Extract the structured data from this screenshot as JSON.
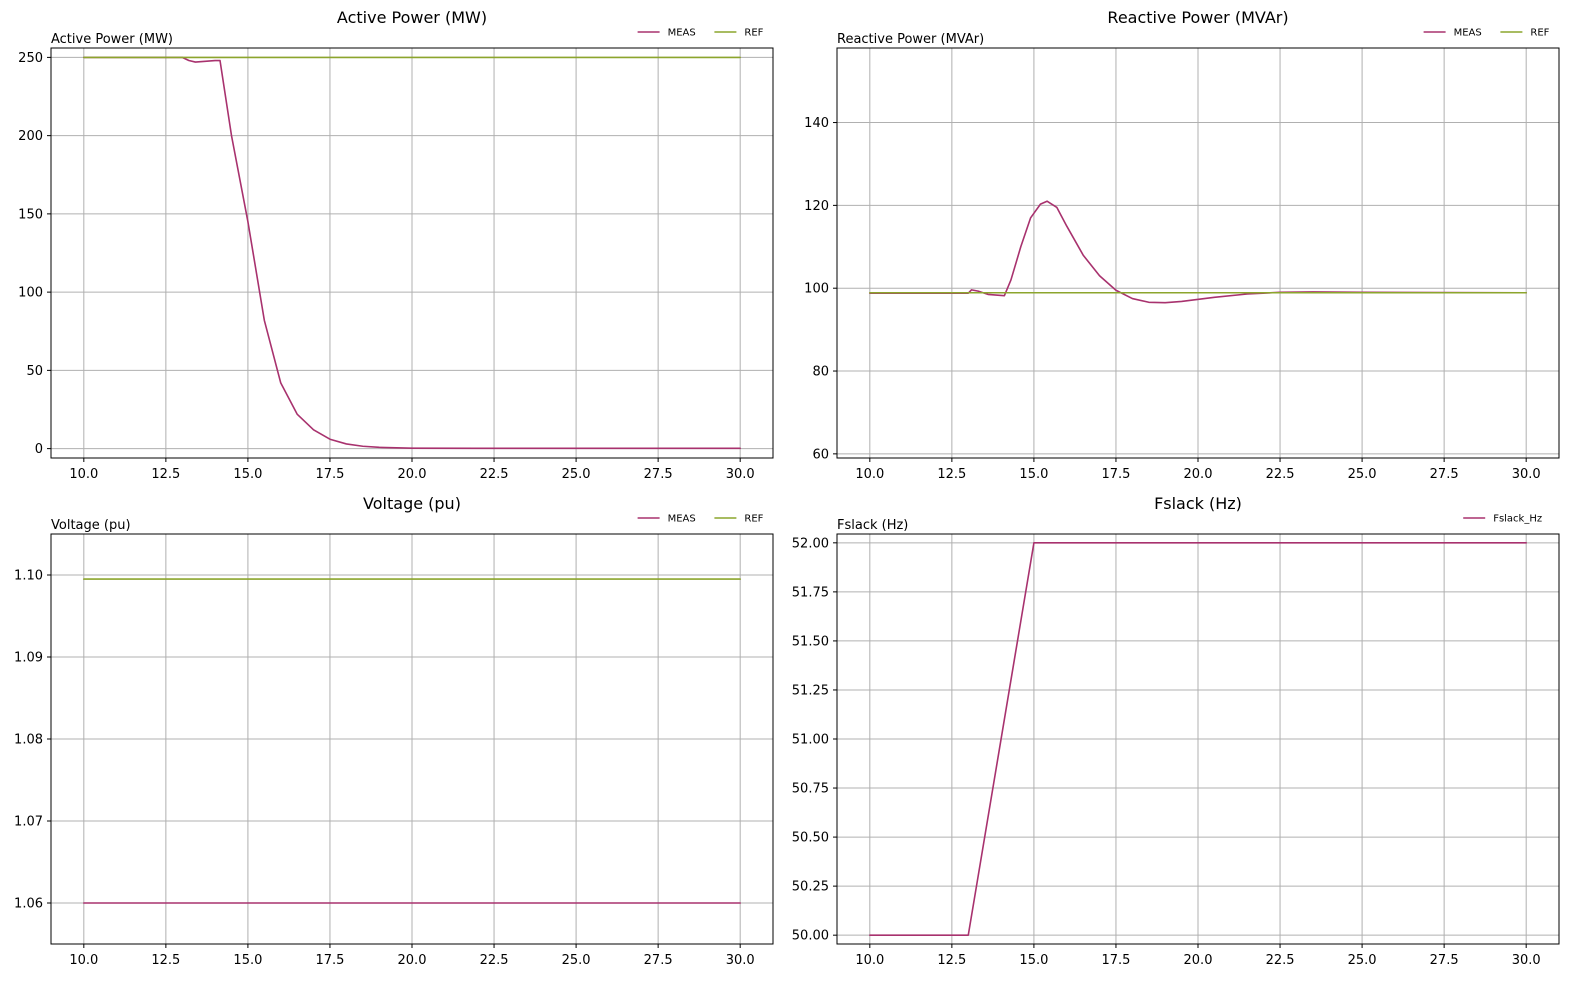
{
  "colors": {
    "meas": "#a8326e",
    "ref": "#8ca52d",
    "grid": "#b0b0b0"
  },
  "chart_data": [
    {
      "type": "line",
      "title": "Active Power (MW)",
      "ylabel": "Active Power (MW)",
      "xlim": [
        9.0,
        31.0
      ],
      "ylim": [
        -6,
        256
      ],
      "xticks": [
        10.0,
        12.5,
        15.0,
        17.5,
        20.0,
        22.5,
        25.0,
        27.5,
        30.0
      ],
      "xtick_labels": [
        "10.0",
        "12.5",
        "15.0",
        "17.5",
        "20.0",
        "22.5",
        "25.0",
        "27.5",
        "30.0"
      ],
      "yticks": [
        0,
        50,
        100,
        150,
        200,
        250
      ],
      "ytick_labels": [
        "0",
        "50",
        "100",
        "150",
        "200",
        "250"
      ],
      "grid": true,
      "legend": "top-right",
      "series": [
        {
          "name": "MEAS",
          "color": "#a8326e",
          "x": [
            10,
            13.0,
            13.2,
            13.4,
            13.7,
            14.0,
            14.15,
            14.5,
            15.0,
            15.5,
            16.0,
            16.5,
            17.0,
            17.5,
            18.0,
            18.5,
            19.0,
            20.0,
            22.0,
            25.0,
            30.0
          ],
          "y": [
            250,
            250,
            248,
            247,
            247.5,
            248,
            248,
            200,
            145,
            82,
            42,
            22,
            12,
            6,
            3,
            1.5,
            0.8,
            0.3,
            0.2,
            0.2,
            0.2
          ]
        },
        {
          "name": "REF",
          "color": "#8ca52d",
          "x": [
            10,
            30
          ],
          "y": [
            250,
            250
          ]
        }
      ]
    },
    {
      "type": "line",
      "title": "Reactive Power (MVAr)",
      "ylabel": "Reactive Power (MVAr)",
      "xlim": [
        9.0,
        31.0
      ],
      "ylim": [
        59,
        158
      ],
      "xticks": [
        10.0,
        12.5,
        15.0,
        17.5,
        20.0,
        22.5,
        25.0,
        27.5,
        30.0
      ],
      "xtick_labels": [
        "10.0",
        "12.5",
        "15.0",
        "17.5",
        "20.0",
        "22.5",
        "25.0",
        "27.5",
        "30.0"
      ],
      "yticks": [
        60,
        80,
        100,
        120,
        140
      ],
      "ytick_labels": [
        "60",
        "80",
        "100",
        "120",
        "140"
      ],
      "grid": true,
      "legend": "top-right",
      "series": [
        {
          "name": "MEAS",
          "color": "#a8326e",
          "x": [
            10,
            13.0,
            13.1,
            13.3,
            13.6,
            14.1,
            14.3,
            14.6,
            14.9,
            15.2,
            15.4,
            15.7,
            16.0,
            16.5,
            17.0,
            17.5,
            18.0,
            18.5,
            19.0,
            19.5,
            20.5,
            21.5,
            22.5,
            23.5,
            25.0,
            30.0
          ],
          "y": [
            98.8,
            98.8,
            99.6,
            99.3,
            98.5,
            98.2,
            102,
            110,
            117,
            120.3,
            121,
            119.5,
            115,
            108,
            103,
            99.5,
            97.5,
            96.6,
            96.5,
            96.8,
            97.8,
            98.6,
            99.0,
            99.1,
            99.0,
            98.9
          ]
        },
        {
          "name": "REF",
          "color": "#8ca52d",
          "x": [
            10,
            30
          ],
          "y": [
            98.9,
            98.9
          ]
        }
      ]
    },
    {
      "type": "line",
      "title": "Voltage (pu)",
      "ylabel": "Voltage (pu)",
      "xlim": [
        9.0,
        31.0
      ],
      "ylim": [
        1.055,
        1.105
      ],
      "xticks": [
        10.0,
        12.5,
        15.0,
        17.5,
        20.0,
        22.5,
        25.0,
        27.5,
        30.0
      ],
      "xtick_labels": [
        "10.0",
        "12.5",
        "15.0",
        "17.5",
        "20.0",
        "22.5",
        "25.0",
        "27.5",
        "30.0"
      ],
      "yticks": [
        1.06,
        1.07,
        1.08,
        1.09,
        1.1
      ],
      "ytick_labels": [
        "1.06",
        "1.07",
        "1.08",
        "1.09",
        "1.10"
      ],
      "grid": true,
      "legend": "top-right",
      "series": [
        {
          "name": "MEAS",
          "color": "#a8326e",
          "x": [
            10,
            30
          ],
          "y": [
            1.06,
            1.06
          ]
        },
        {
          "name": "REF",
          "color": "#8ca52d",
          "x": [
            10,
            30
          ],
          "y": [
            1.0995,
            1.0995
          ]
        }
      ]
    },
    {
      "type": "line",
      "title": "Fslack (Hz)",
      "ylabel": "Fslack (Hz)",
      "xlim": [
        9.0,
        31.0
      ],
      "ylim": [
        49.955,
        52.045
      ],
      "xticks": [
        10.0,
        12.5,
        15.0,
        17.5,
        20.0,
        22.5,
        25.0,
        27.5,
        30.0
      ],
      "xtick_labels": [
        "10.0",
        "12.5",
        "15.0",
        "17.5",
        "20.0",
        "22.5",
        "25.0",
        "27.5",
        "30.0"
      ],
      "yticks": [
        50.0,
        50.25,
        50.5,
        50.75,
        51.0,
        51.25,
        51.5,
        51.75,
        52.0
      ],
      "ytick_labels": [
        "50.00",
        "50.25",
        "50.50",
        "50.75",
        "51.00",
        "51.25",
        "51.50",
        "51.75",
        "52.00"
      ],
      "grid": true,
      "legend": "top-right",
      "series": [
        {
          "name": "Fslack_Hz",
          "color": "#a8326e",
          "x": [
            10,
            13.0,
            15.0,
            30.0
          ],
          "y": [
            50.0,
            50.0,
            52.0,
            52.0
          ]
        }
      ]
    }
  ]
}
